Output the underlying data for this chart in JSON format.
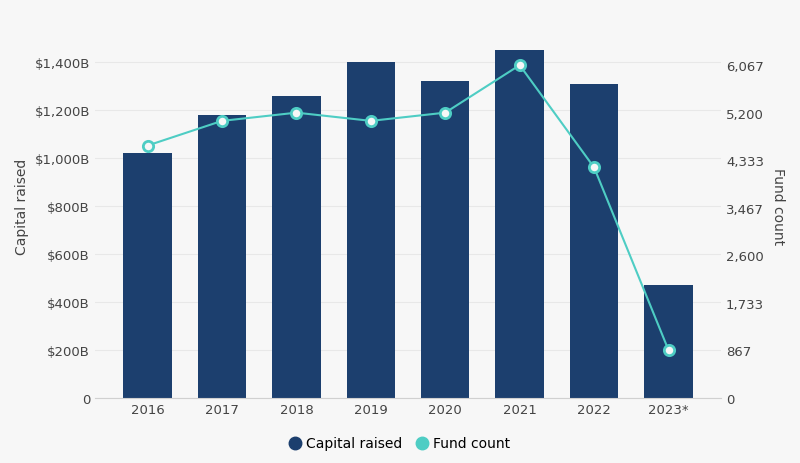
{
  "years": [
    "2016",
    "2017",
    "2018",
    "2019",
    "2020",
    "2021",
    "2022",
    "2023*"
  ],
  "capital_raised_B": [
    1020,
    1180,
    1260,
    1400,
    1320,
    1450,
    1310,
    470
  ],
  "fund_count": [
    4600,
    5050,
    5200,
    5050,
    5200,
    6067,
    4200,
    867
  ],
  "bar_color": "#1c3f6e",
  "line_color": "#4ecdc4",
  "background_color": "#f7f7f7",
  "plot_bg_color": "#f7f7f7",
  "ylabel_left": "Capital raised",
  "ylabel_right": "Fund count",
  "ylim_left": [
    0,
    1600
  ],
  "ylim_right": [
    0,
    7000
  ],
  "yticks_left": [
    0,
    200,
    400,
    600,
    800,
    1000,
    1200,
    1400
  ],
  "ytick_labels_left": [
    "0",
    "$200B",
    "$400B",
    "$600B",
    "$800B",
    "$1,000B",
    "$1,200B",
    "$1,400B"
  ],
  "yticks_right": [
    0,
    867,
    1733,
    2600,
    3467,
    4333,
    5200,
    6067
  ],
  "ytick_labels_right": [
    "0",
    "867",
    "1,733",
    "2,600",
    "3,467",
    "4,333",
    "5,200",
    "6,067"
  ],
  "legend_labels": [
    "Capital raised",
    "Fund count"
  ],
  "bar_width": 0.65,
  "axis_fontsize": 10,
  "tick_fontsize": 9.5,
  "legend_fontsize": 10,
  "grid_color": "#e8e8e8",
  "spine_color": "#d0d0d0",
  "text_color": "#444444"
}
